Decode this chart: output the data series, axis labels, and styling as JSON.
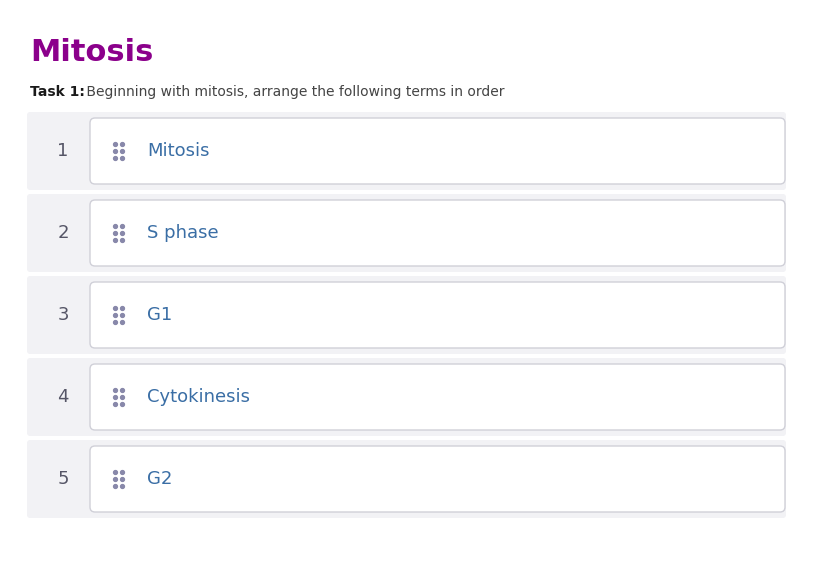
{
  "title": "Mitosis",
  "title_color": "#8B008B",
  "task_label": "Task 1:",
  "task_label_color": "#1a1a1a",
  "task_text": " Beginning with mitosis, arrange the following terms in order",
  "task_text_color": "#444444",
  "items": [
    {
      "number": "1",
      "label": "Mitosis"
    },
    {
      "number": "2",
      "label": "S phase"
    },
    {
      "number": "3",
      "label": "G1"
    },
    {
      "number": "4",
      "label": "Cytokinesis"
    },
    {
      "number": "5",
      "label": "G2"
    }
  ],
  "background_color": "#ffffff",
  "row_bg_color": "#f2f2f5",
  "box_bg_color": "#ffffff",
  "box_border_color": "#d0d0d8",
  "number_color": "#555566",
  "label_color": "#3a6ea5",
  "dot_color": "#8888aa",
  "figwidth": 8.13,
  "figheight": 5.61,
  "dpi": 100
}
